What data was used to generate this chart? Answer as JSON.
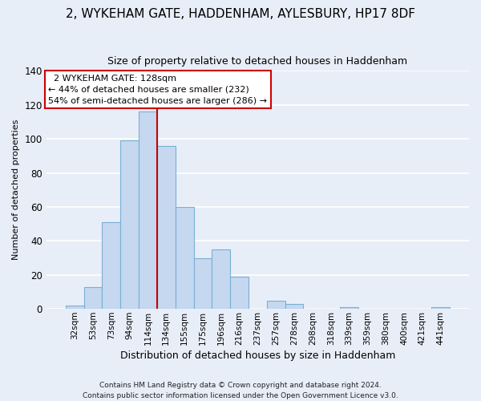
{
  "title": "2, WYKEHAM GATE, HADDENHAM, AYLESBURY, HP17 8DF",
  "subtitle": "Size of property relative to detached houses in Haddenham",
  "xlabel": "Distribution of detached houses by size in Haddenham",
  "ylabel": "Number of detached properties",
  "bar_labels": [
    "32sqm",
    "53sqm",
    "73sqm",
    "94sqm",
    "114sqm",
    "134sqm",
    "155sqm",
    "175sqm",
    "196sqm",
    "216sqm",
    "237sqm",
    "257sqm",
    "278sqm",
    "298sqm",
    "318sqm",
    "339sqm",
    "359sqm",
    "380sqm",
    "400sqm",
    "421sqm",
    "441sqm"
  ],
  "bar_values": [
    2,
    13,
    51,
    99,
    116,
    96,
    60,
    30,
    35,
    19,
    0,
    5,
    3,
    0,
    0,
    1,
    0,
    0,
    0,
    0,
    1
  ],
  "bar_color": "#c5d8f0",
  "bar_edge_color": "#7aafd4",
  "vline_color": "#cc0000",
  "vline_x": 4.5,
  "ylim": [
    0,
    140
  ],
  "yticks": [
    0,
    20,
    40,
    60,
    80,
    100,
    120,
    140
  ],
  "annotation_title": "2 WYKEHAM GATE: 128sqm",
  "annotation_line1": "← 44% of detached houses are smaller (232)",
  "annotation_line2": "54% of semi-detached houses are larger (286) →",
  "annotation_box_facecolor": "#ffffff",
  "annotation_box_edgecolor": "#cc0000",
  "footer_line1": "Contains HM Land Registry data © Crown copyright and database right 2024.",
  "footer_line2": "Contains public sector information licensed under the Open Government Licence v3.0.",
  "fig_facecolor": "#e8eef8",
  "plot_facecolor": "#e8eef8",
  "title_fontsize": 11,
  "subtitle_fontsize": 9,
  "xlabel_fontsize": 9,
  "ylabel_fontsize": 8
}
